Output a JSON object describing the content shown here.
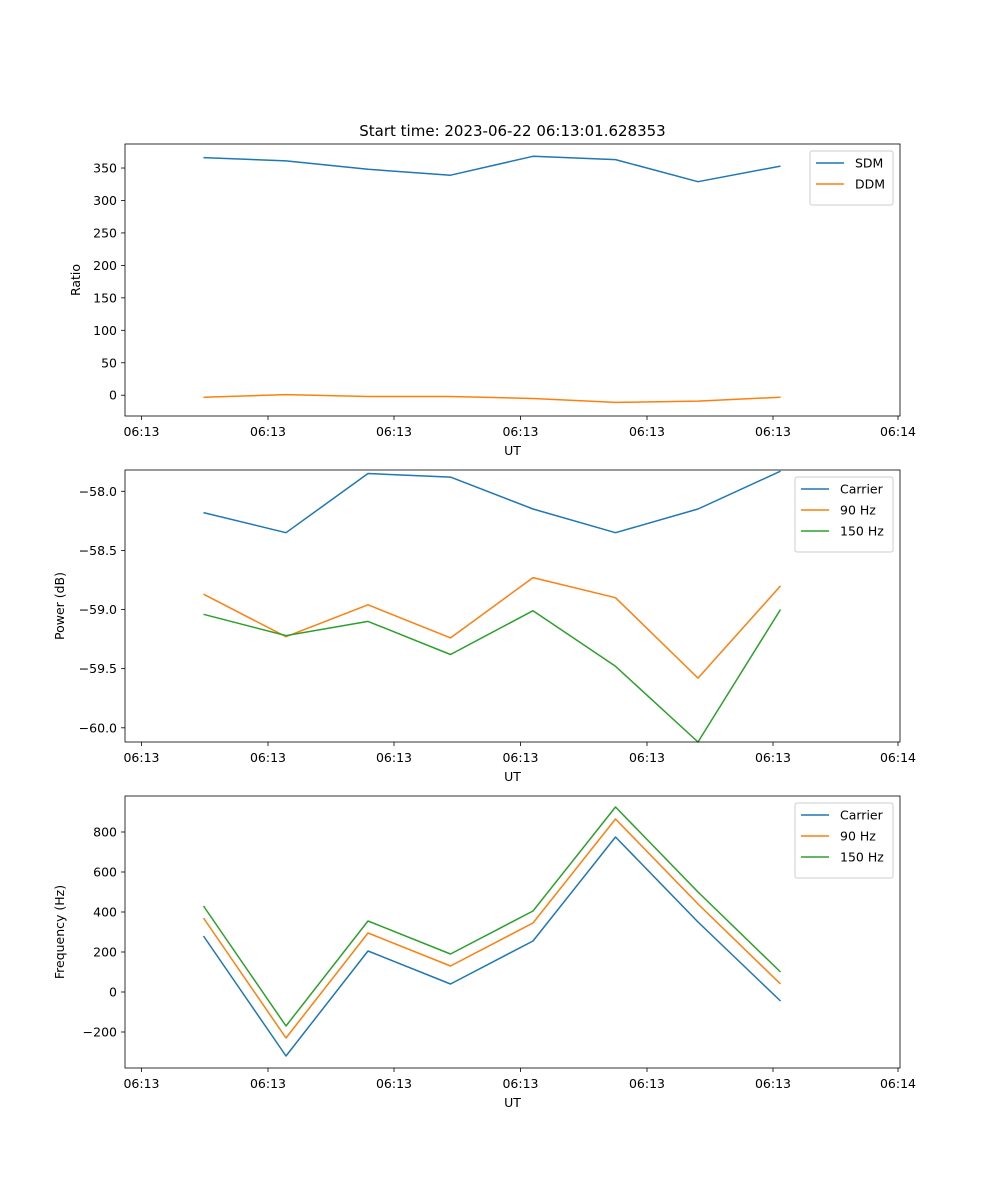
{
  "chart_data": [
    {
      "type": "line",
      "title": "Start time: 2023-06-22 06:13:01.628353",
      "xlabel": "UT",
      "ylabel": "Ratio",
      "xticks": [
        "06:13",
        "06:13",
        "06:13",
        "06:13",
        "06:13",
        "06:13",
        "06:14"
      ],
      "yticks": [
        0,
        50,
        100,
        150,
        200,
        250,
        300,
        350
      ],
      "ylim": [
        -32,
        387
      ],
      "legend": "top-right",
      "grid": false,
      "x": [
        1,
        2,
        3,
        4,
        5,
        6,
        7,
        8
      ],
      "series": [
        {
          "name": "SDM",
          "color": "#1f77b4",
          "values": [
            366,
            361,
            348,
            339,
            368,
            363,
            329,
            353
          ]
        },
        {
          "name": "DDM",
          "color": "#ff7f0e",
          "values": [
            -3,
            1,
            -2,
            -2,
            -5,
            -11,
            -9,
            -3
          ]
        }
      ]
    },
    {
      "type": "line",
      "title": "",
      "xlabel": "UT",
      "ylabel": "Power (dB)",
      "xticks": [
        "06:13",
        "06:13",
        "06:13",
        "06:13",
        "06:13",
        "06:13",
        "06:14"
      ],
      "yticks": [
        -58.0,
        -58.5,
        -59.0,
        -59.5,
        -60.0
      ],
      "ylim": [
        -60.12,
        -57.82
      ],
      "legend": "top-right",
      "grid": false,
      "x": [
        1,
        2,
        3,
        4,
        5,
        6,
        7,
        8
      ],
      "series": [
        {
          "name": "Carrier",
          "color": "#1f77b4",
          "values": [
            -58.18,
            -58.35,
            -57.85,
            -57.88,
            -58.15,
            -58.35,
            -58.15,
            -57.83
          ]
        },
        {
          "name": "90 Hz",
          "color": "#ff7f0e",
          "values": [
            -58.87,
            -59.23,
            -58.96,
            -59.24,
            -58.73,
            -58.9,
            -59.58,
            -58.8
          ]
        },
        {
          "name": "150 Hz",
          "color": "#2ca02c",
          "values": [
            -59.04,
            -59.22,
            -59.1,
            -59.38,
            -59.01,
            -59.48,
            -60.12,
            -59.0
          ]
        }
      ]
    },
    {
      "type": "line",
      "title": "",
      "xlabel": "UT",
      "ylabel": "Frequency (Hz)",
      "xticks": [
        "06:13",
        "06:13",
        "06:13",
        "06:13",
        "06:13",
        "06:13",
        "06:14"
      ],
      "yticks": [
        -200,
        0,
        200,
        400,
        600,
        800
      ],
      "ylim": [
        -380,
        980
      ],
      "legend": "top-right",
      "grid": false,
      "x": [
        1,
        2,
        3,
        4,
        5,
        6,
        7,
        8
      ],
      "series": [
        {
          "name": "Carrier",
          "color": "#1f77b4",
          "values": [
            280,
            -320,
            205,
            40,
            255,
            775,
            350,
            -45
          ]
        },
        {
          "name": "90 Hz",
          "color": "#ff7f0e",
          "values": [
            370,
            -230,
            295,
            130,
            345,
            865,
            440,
            40
          ]
        },
        {
          "name": "150 Hz",
          "color": "#2ca02c",
          "values": [
            430,
            -170,
            355,
            190,
            405,
            925,
            500,
            100
          ]
        }
      ]
    }
  ]
}
